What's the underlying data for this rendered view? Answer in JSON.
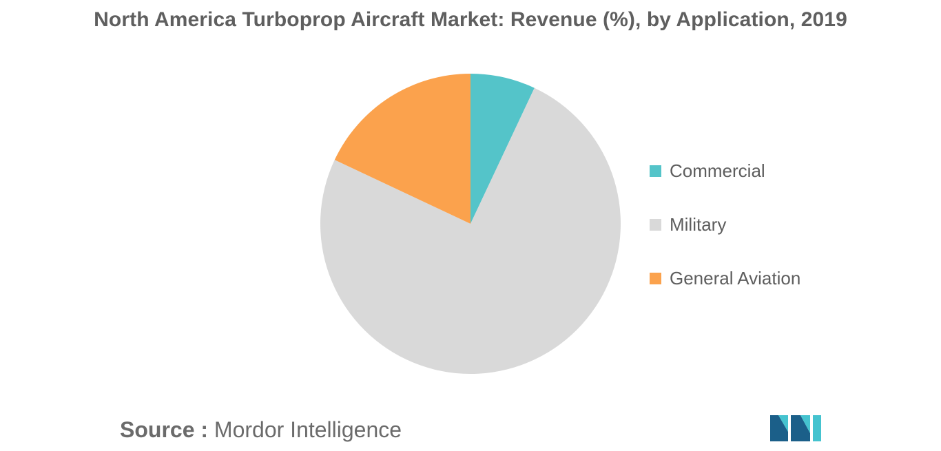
{
  "chart_data": {
    "type": "pie",
    "title": "North America Turboprop Aircraft Market: Revenue (%), by Application, 2019",
    "categories": [
      "Commercial",
      "Military",
      "General Aviation"
    ],
    "values": [
      7,
      75,
      18
    ],
    "colors": [
      "#54c4c9",
      "#d9d9d9",
      "#fba24d"
    ],
    "start_angle_deg": 0,
    "direction": "clockwise",
    "legend": {
      "placement": "right",
      "entries": [
        "Commercial",
        "Military",
        "General Aviation"
      ]
    }
  },
  "footer": {
    "source_label": "Source",
    "source_sep": " : ",
    "source_value": "Mordor Intelligence"
  },
  "logo": {
    "name": "mordor-intelligence-logo",
    "colors": [
      "#1b5f89",
      "#45c3cf"
    ]
  }
}
